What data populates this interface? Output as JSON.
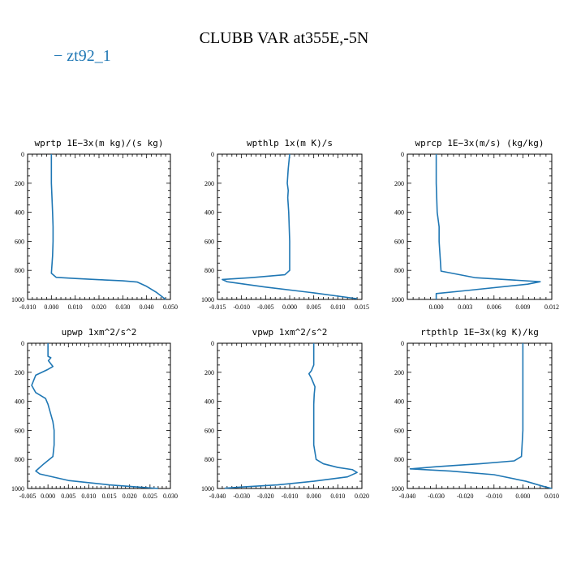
{
  "title": "CLUBB VAR at355E,-5N",
  "legend": {
    "label": "zt92_1",
    "marker": "−",
    "color": "#1f77b4"
  },
  "chart_data": [
    {
      "type": "line",
      "title": "wprtp  1E−3x(m kg)/(s kg)",
      "xlim": [
        -0.01,
        0.05
      ],
      "ylim": [
        0,
        1000
      ],
      "y_inverted": true,
      "xticks": [
        "-0.010",
        "0.000",
        "0.010",
        "0.020",
        "0.030",
        "0.040",
        "0.050"
      ],
      "xtick_values": [
        -0.01,
        0.0,
        0.01,
        0.02,
        0.03,
        0.04,
        0.05
      ],
      "yticks": [
        "0",
        "200",
        "400",
        "600",
        "800",
        "1000"
      ],
      "series": [
        {
          "color": "#1f77b4",
          "x": [
            0.0,
            0.0,
            0.0005,
            0.0007,
            0.0007,
            0.0005,
            0.0,
            0.002,
            0.01,
            0.02,
            0.03,
            0.036,
            0.04,
            0.044,
            0.048
          ],
          "y": [
            0,
            200,
            400,
            500,
            600,
            700,
            820,
            848,
            856,
            864,
            872,
            880,
            910,
            950,
            1000
          ]
        }
      ]
    },
    {
      "type": "line",
      "title": "wpthlp  1x(m K)/s",
      "xlim": [
        -0.015,
        0.015
      ],
      "ylim": [
        0,
        1000
      ],
      "y_inverted": true,
      "xticks": [
        "-0.015",
        "-0.010",
        "-0.005",
        "0.000",
        "0.005",
        "0.010",
        "0.015"
      ],
      "xtick_values": [
        -0.015,
        -0.01,
        -0.005,
        0.0,
        0.005,
        0.01,
        0.015
      ],
      "yticks": [
        "0",
        "200",
        "400",
        "600",
        "800",
        "1000"
      ],
      "series": [
        {
          "color": "#1f77b4",
          "x": [
            0.0,
            -0.0003,
            -0.0005,
            -0.0003,
            -0.0004,
            -0.0002,
            -0.0001,
            0.0,
            0.0,
            -0.001,
            -0.008,
            -0.014,
            -0.013,
            -0.005,
            0.005,
            0.014
          ],
          "y": [
            0,
            100,
            200,
            250,
            300,
            400,
            500,
            600,
            800,
            830,
            850,
            863,
            878,
            915,
            955,
            995
          ]
        }
      ]
    },
    {
      "type": "line",
      "title": "wprcp  1E−3x(m/s) (kg/kg)",
      "xlim": [
        -0.003,
        0.012
      ],
      "ylim": [
        0,
        1000
      ],
      "y_inverted": true,
      "xticks": [
        "0.000",
        "0.003",
        "0.006",
        "0.009",
        "0.012"
      ],
      "xtick_values": [
        0.0,
        0.003,
        0.006,
        0.009,
        0.012
      ],
      "yticks": [
        "0",
        "200",
        "400",
        "600",
        "800",
        "1000"
      ],
      "series": [
        {
          "color": "#1f77b4",
          "x": [
            0.0,
            0.0,
            0.0001,
            0.0003,
            0.0003,
            0.0005,
            0.004,
            0.0108,
            0.0095,
            0.003,
            0.0,
            0.0
          ],
          "y": [
            0,
            200,
            400,
            500,
            600,
            805,
            850,
            878,
            895,
            940,
            960,
            1000
          ]
        }
      ]
    },
    {
      "type": "line",
      "title": "upwp  1xm^2/s^2",
      "xlim": [
        -0.005,
        0.03
      ],
      "ylim": [
        0,
        1000
      ],
      "y_inverted": true,
      "xticks": [
        "-0.005",
        "0.000",
        "0.005",
        "0.010",
        "0.015",
        "0.020",
        "0.025",
        "0.030"
      ],
      "xtick_values": [
        -0.005,
        0.0,
        0.005,
        0.01,
        0.015,
        0.02,
        0.025,
        0.03
      ],
      "yticks": [
        "0",
        "200",
        "400",
        "600",
        "800",
        "1000"
      ],
      "series": [
        {
          "color": "#1f77b4",
          "x": [
            0.0,
            0.0,
            0.0007,
            0.0001,
            0.0012,
            0.0,
            -0.003,
            -0.004,
            -0.003,
            -0.0006,
            0.0,
            0.0006,
            0.0012,
            0.0015,
            0.0015,
            0.0012,
            -0.001,
            -0.003,
            -0.002,
            0.005,
            0.015,
            0.022,
            0.027
          ],
          "y": [
            0,
            90,
            100,
            120,
            160,
            180,
            220,
            290,
            340,
            380,
            420,
            480,
            540,
            600,
            700,
            780,
            830,
            880,
            900,
            945,
            975,
            990,
            1000
          ]
        }
      ]
    },
    {
      "type": "line",
      "title": "vpwp  1xm^2/s^2",
      "xlim": [
        -0.04,
        0.02
      ],
      "ylim": [
        0,
        1000
      ],
      "y_inverted": true,
      "xticks": [
        "-0.040",
        "-0.030",
        "-0.020",
        "-0.010",
        "0.000",
        "0.010",
        "0.020"
      ],
      "xtick_values": [
        -0.04,
        -0.03,
        -0.02,
        -0.01,
        0.0,
        0.01,
        0.02
      ],
      "yticks": [
        "0",
        "200",
        "400",
        "600",
        "800",
        "1000"
      ],
      "series": [
        {
          "color": "#1f77b4",
          "x": [
            0.0,
            0.0,
            -0.001,
            -0.002,
            -0.001,
            0.0005,
            0.0002,
            0.0,
            0.0,
            0.001,
            0.004,
            0.01,
            0.016,
            0.018,
            0.014,
            0.0,
            -0.015,
            -0.03,
            -0.037
          ],
          "y": [
            0,
            150,
            190,
            210,
            240,
            300,
            350,
            420,
            700,
            800,
            830,
            855,
            870,
            890,
            920,
            950,
            975,
            990,
            998
          ]
        }
      ]
    },
    {
      "type": "line",
      "title": "rtpthlp  1E−3x(kg K)/kg",
      "xlim": [
        -0.04,
        0.01
      ],
      "ylim": [
        0,
        1000
      ],
      "y_inverted": true,
      "xticks": [
        "-0.040",
        "-0.030",
        "-0.020",
        "-0.010",
        "0.000",
        "0.010"
      ],
      "xtick_values": [
        -0.04,
        -0.03,
        -0.02,
        -0.01,
        0.0,
        0.01
      ],
      "yticks": [
        "0",
        "200",
        "400",
        "600",
        "800",
        "1000"
      ],
      "series": [
        {
          "color": "#1f77b4",
          "x": [
            0.0,
            0.0,
            0.0,
            -0.0005,
            -0.003,
            -0.015,
            -0.03,
            -0.039,
            -0.025,
            -0.01,
            0.001,
            0.007,
            0.01
          ],
          "y": [
            0,
            200,
            600,
            780,
            810,
            830,
            850,
            865,
            880,
            905,
            950,
            985,
            1000
          ]
        }
      ]
    }
  ]
}
